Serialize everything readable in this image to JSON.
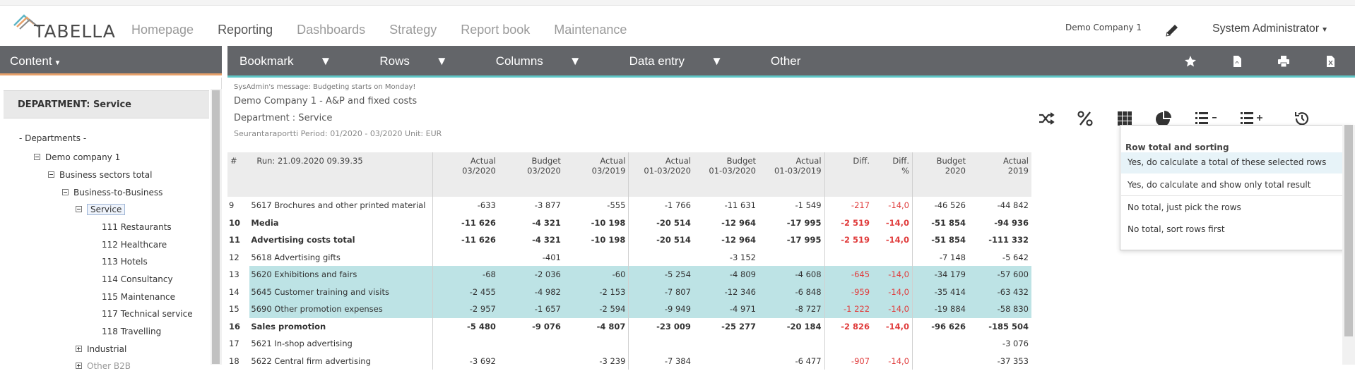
{
  "header": {
    "logo_text": "TABELLA",
    "nav": [
      "Homepage",
      "Reporting",
      "Dashboards",
      "Strategy",
      "Report book",
      "Maintenance"
    ],
    "active_nav": "Reporting",
    "company": "Demo Company 1",
    "user": "System Administrator"
  },
  "leftbar": {
    "content_label": "Content"
  },
  "mainbar": {
    "menu": [
      "Bookmark",
      "Rows",
      "Columns",
      "Data entry",
      "Other"
    ],
    "icons": [
      "star-icon",
      "pdf-icon",
      "print-icon",
      "excel-icon"
    ]
  },
  "leftpanel": {
    "department_title": "DEPARTMENT: Service",
    "tree": {
      "departments": "- Departments -",
      "company": "Demo company 1",
      "sectors": "Business sectors total",
      "b2b": "Business-to-Business",
      "service": "Service",
      "items": [
        "111 Restaurants",
        "112 Healthcare",
        "113 Hotels",
        "114 Consultancy",
        "115 Maintenance",
        "117 Technical service",
        "118 Travelling"
      ],
      "industrial": "Industrial",
      "partial_last": "Other B2B"
    }
  },
  "report": {
    "sysmsg": "SysAdmin's message: Budgeting starts on Monday!",
    "title": "Demo Company 1 - A&P and fixed costs",
    "department": "Department : Service",
    "period": "Seurantaraportti Period: 01/2020 - 03/2020 Unit: EUR",
    "headers": {
      "hash": "#",
      "run": "Run: 21.09.2020 09.39.35",
      "cols": [
        [
          "Actual",
          "03/2020"
        ],
        [
          "Budget",
          "03/2020"
        ],
        [
          "Actual",
          "03/2019"
        ],
        [
          "Actual",
          "01-03/2020"
        ],
        [
          "Budget",
          "01-03/2020"
        ],
        [
          "Actual",
          "01-03/2019"
        ],
        [
          "",
          "Diff."
        ],
        [
          "Diff.",
          "%"
        ],
        [
          "Budget",
          "2020"
        ],
        [
          "Actual",
          "2019"
        ]
      ]
    },
    "rows": [
      {
        "n": "9",
        "name": "5617 Brochures and other printed material",
        "v": [
          "-633",
          "-3 877",
          "-555",
          "-1 766",
          "-11 631",
          "-1 549",
          "-217",
          "-14,0",
          "-46 526",
          "-44 842"
        ]
      },
      {
        "n": "10",
        "name": "Media",
        "v": [
          "-11 626",
          "-4 321",
          "-10 198",
          "-20 514",
          "-12 964",
          "-17 995",
          "-2 519",
          "-14,0",
          "-51 854",
          "-94 936"
        ]
      },
      {
        "n": "11",
        "name": "Advertising costs total",
        "v": [
          "-11 626",
          "-4 321",
          "-10 198",
          "-20 514",
          "-12 964",
          "-17 995",
          "-2 519",
          "-14,0",
          "-51 854",
          "-111 332"
        ]
      },
      {
        "n": "12",
        "name": "5618 Advertising gifts",
        "v": [
          "",
          "-401",
          "",
          "",
          "-3 152",
          "",
          "",
          "",
          "-7 148",
          "-5 642"
        ]
      },
      {
        "n": "13",
        "name": "5620 Exhibitions and fairs",
        "v": [
          "-68",
          "-2 036",
          "-60",
          "-5 254",
          "-4 809",
          "-4 608",
          "-645",
          "-14,0",
          "-34 179",
          "-57 600"
        ]
      },
      {
        "n": "14",
        "name": "5645 Customer training and visits",
        "v": [
          "-2 455",
          "-4 982",
          "-2 153",
          "-7 807",
          "-12 346",
          "-6 848",
          "-959",
          "-14,0",
          "-35 414",
          "-63 432"
        ]
      },
      {
        "n": "15",
        "name": "5690 Other promotion expenses",
        "v": [
          "-2 957",
          "-1 657",
          "-2 594",
          "-9 949",
          "-4 971",
          "-8 727",
          "-1 222",
          "-14,0",
          "-19 884",
          "-58 830"
        ]
      },
      {
        "n": "16",
        "name": "Sales promotion",
        "v": [
          "-5 480",
          "-9 076",
          "-4 807",
          "-23 009",
          "-25 277",
          "-20 184",
          "-2 826",
          "-14,0",
          "-96 626",
          "-185 504"
        ]
      },
      {
        "n": "17",
        "name": "5621 In-shop advertising",
        "v": [
          "",
          "",
          "",
          "",
          "",
          "",
          "",
          "",
          "",
          "-3 076"
        ]
      },
      {
        "n": "18",
        "name": "5622 Central firm advertising",
        "v": [
          "-3 692",
          "",
          "-3 239",
          "-7 384",
          "",
          "-6 477",
          "-907",
          "-14,0",
          "",
          "-37 353"
        ]
      }
    ]
  },
  "toolbar_icons": [
    "shuffle-icon",
    "percent-icon",
    "grid-icon",
    "pie-chart-icon",
    "list-minus-icon",
    "list-plus-icon",
    "history-icon"
  ],
  "dropdown": {
    "title": "Row total and sorting",
    "items": [
      "Yes, do calculate a total of these selected rows",
      "Yes, do calculate and show only total result",
      "No total, just pick the rows",
      "No total, sort rows first"
    ]
  },
  "colors": {
    "toolbar": "#636569",
    "accent_teal": "#5fc6c6",
    "accent_orange": "#e6a06a",
    "highlight": "#bde3e5",
    "negative": "#e03c3c"
  }
}
